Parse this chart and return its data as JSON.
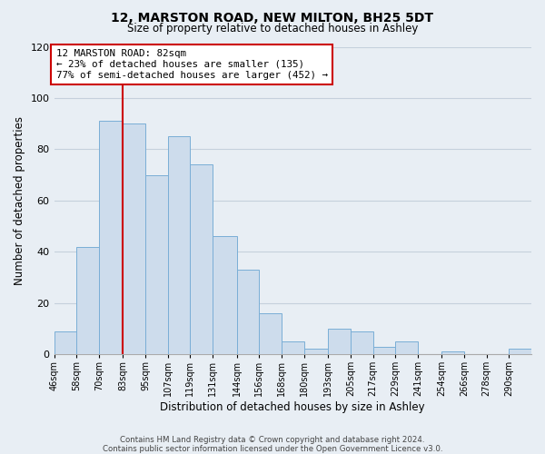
{
  "title": "12, MARSTON ROAD, NEW MILTON, BH25 5DT",
  "subtitle": "Size of property relative to detached houses in Ashley",
  "xlabel": "Distribution of detached houses by size in Ashley",
  "ylabel": "Number of detached properties",
  "bar_color": "#cddcec",
  "bar_edge_color": "#7aaed6",
  "bin_labels": [
    "46sqm",
    "58sqm",
    "70sqm",
    "83sqm",
    "95sqm",
    "107sqm",
    "119sqm",
    "131sqm",
    "144sqm",
    "156sqm",
    "168sqm",
    "180sqm",
    "193sqm",
    "205sqm",
    "217sqm",
    "229sqm",
    "241sqm",
    "254sqm",
    "266sqm",
    "278sqm",
    "290sqm"
  ],
  "bar_heights": [
    9,
    42,
    91,
    90,
    70,
    85,
    74,
    46,
    33,
    16,
    5,
    2,
    10,
    9,
    3,
    5,
    0,
    1,
    0,
    0,
    2
  ],
  "marker_label": "12 MARSTON ROAD: 82sqm",
  "annotation_line1": "← 23% of detached houses are smaller (135)",
  "annotation_line2": "77% of semi-detached houses are larger (452) →",
  "vline_color": "#cc0000",
  "annotation_box_facecolor": "#ffffff",
  "annotation_box_edgecolor": "#cc0000",
  "ylim": [
    0,
    120
  ],
  "yticks": [
    0,
    20,
    40,
    60,
    80,
    100,
    120
  ],
  "footnote1": "Contains HM Land Registry data © Crown copyright and database right 2024.",
  "footnote2": "Contains public sector information licensed under the Open Government Licence v3.0.",
  "background_color": "#e8eef4",
  "plot_bg_color": "#e8eef4",
  "grid_color": "#c5d0dc",
  "bin_edges": [
    46,
    58,
    70,
    83,
    95,
    107,
    119,
    131,
    144,
    156,
    168,
    180,
    193,
    205,
    217,
    229,
    241,
    254,
    266,
    278,
    290
  ],
  "vline_x_index": 3,
  "figsize": [
    6.0,
    5.0
  ],
  "dpi": 100
}
